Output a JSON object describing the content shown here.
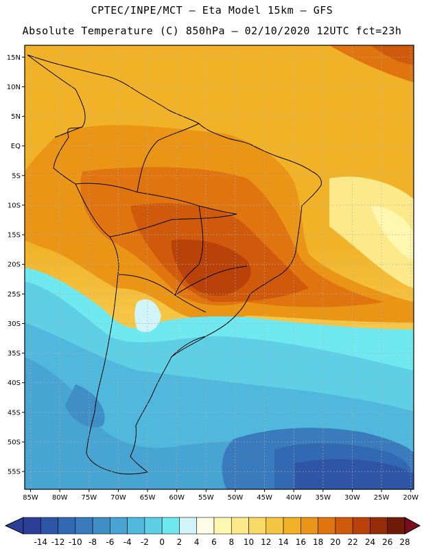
{
  "header": {
    "line1": "CPTEC/INPE/MCT –  Eta Model 15km – GFS",
    "line2": "Absolute Temperature (C) 850hPa – 02/10/2020 12UTC fct=23h"
  },
  "map": {
    "region": "South America",
    "variable": "Absolute Temperature (C) 850hPa",
    "lon_range": [
      -86,
      -19.5
    ],
    "lat_range": [
      -58,
      17
    ],
    "lat_labels": [
      "15N",
      "10N",
      "5N",
      "EQ",
      "5S",
      "10S",
      "15S",
      "20S",
      "25S",
      "30S",
      "35S",
      "40S",
      "45S",
      "50S",
      "55S"
    ],
    "lon_labels": [
      "85W",
      "80W",
      "75W",
      "70W",
      "65W",
      "60W",
      "55W",
      "50W",
      "45W",
      "40W",
      "35W",
      "30W",
      "25W",
      "20W"
    ]
  },
  "colorbar": {
    "labels": [
      "-14",
      "-12",
      "-10",
      "-8",
      "-6",
      "-4",
      "-2",
      "0",
      "2",
      "4",
      "6",
      "8",
      "10",
      "12",
      "14",
      "16",
      "18",
      "20",
      "22",
      "24",
      "26",
      "28"
    ],
    "colors": [
      "#2b3f96",
      "#2f55a6",
      "#3269b2",
      "#3a7bbd",
      "#3f8fc6",
      "#48a4d1",
      "#4fb8dc",
      "#5fcfe6",
      "#6fe8f0",
      "#d0f4f7",
      "#fffbe6",
      "#fff7b0",
      "#fce98a",
      "#f9d966",
      "#f5c544",
      "#f1b228",
      "#ea9516",
      "#e07510",
      "#d05a0c",
      "#b8420a",
      "#962c08",
      "#6e1c08"
    ]
  }
}
